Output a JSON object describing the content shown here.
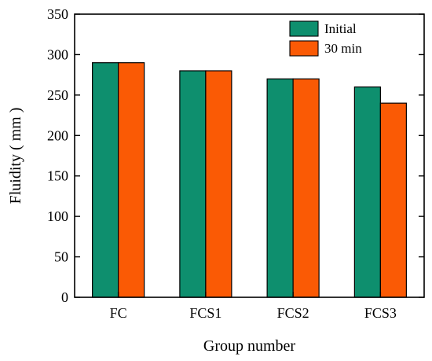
{
  "chart_data": {
    "type": "bar",
    "title": "",
    "xlabel": "Group number",
    "ylabel": "Fluidity ( mm )",
    "categories": [
      "FC",
      "FCS1",
      "FCS2",
      "FCS3"
    ],
    "series": [
      {
        "name": "Initial",
        "values": [
          290,
          280,
          270,
          260
        ],
        "color": "#0e8f6e"
      },
      {
        "name": "30 min",
        "values": [
          290,
          280,
          270,
          240
        ],
        "color": "#fa5a05"
      }
    ],
    "ylim": [
      0,
      350
    ],
    "yticks": [
      0,
      50,
      100,
      150,
      200,
      250,
      300,
      350
    ],
    "legend_position": "top-right",
    "grid": false
  }
}
